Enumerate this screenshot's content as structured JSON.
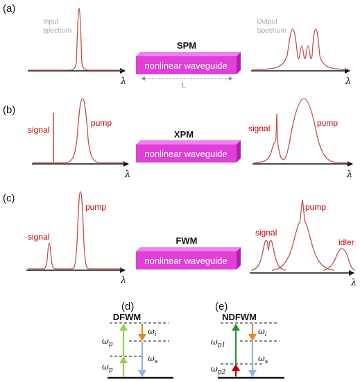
{
  "panels": {
    "a": {
      "label": "(a)",
      "process": "SPM",
      "waveguide": "nonlinear waveguide",
      "length_label": "L",
      "input_label": [
        "Input",
        "spectrum"
      ],
      "output_label": [
        "Output",
        "Spectrum"
      ],
      "axis_symbol": "λ"
    },
    "b": {
      "label": "(b)",
      "process": "XPM",
      "waveguide": "nonlinear  waveguide",
      "signal": "signal",
      "pump": "pump",
      "axis_symbol": "λ"
    },
    "c": {
      "label": "(c)",
      "process": "FWM",
      "waveguide": "nonlinear  waveguide",
      "signal": "signal",
      "pump": "pump",
      "idler": "idler",
      "axis_symbol": "λ"
    },
    "d": {
      "label": "(d)",
      "title": "DFWM",
      "omega_p_upper": {
        "base": "ω",
        "sub": "p"
      },
      "omega_p_lower": {
        "base": "ω",
        "sub": "p"
      },
      "omega_i": {
        "base": "ω",
        "sub": "i"
      },
      "omega_s": {
        "base": "ω",
        "sub": "s"
      }
    },
    "e": {
      "label": "(e)",
      "title": "NDFWM",
      "omega_p1": {
        "base": "ω",
        "sub": "p1"
      },
      "omega_p2": {
        "base": "ω",
        "sub": "p2"
      },
      "omega_i": {
        "base": "ω",
        "sub": "i"
      },
      "omega_s": {
        "base": "ω",
        "sub": "s"
      }
    }
  },
  "colors": {
    "curve": "#c0504d",
    "waveguide_front": "#e040d8",
    "waveguide_top": "#f080ec",
    "waveguide_side": "#b020a8",
    "pump_arrow_light": "#92d050",
    "pump_arrow_dark": "#2e8b3a",
    "pump2_arrow": "#c00000",
    "idler_arrow": "#e08a20",
    "signal_arrow": "#8fb4e3"
  }
}
